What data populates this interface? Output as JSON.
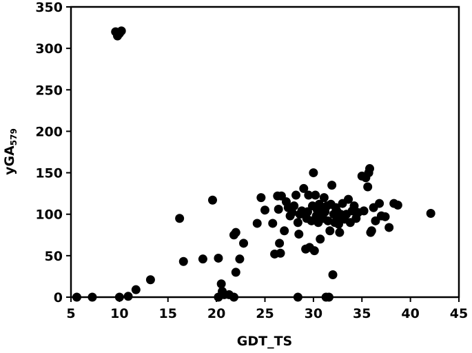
{
  "chart_data": {
    "type": "scatter",
    "title": "",
    "xlabel": "GDT_TS",
    "ylabel": {
      "main": "yGA",
      "subscript": "579"
    },
    "xlim": [
      5,
      45
    ],
    "ylim": [
      0,
      350
    ],
    "x_ticks": [
      5,
      10,
      15,
      20,
      25,
      30,
      35,
      40,
      45
    ],
    "y_ticks": [
      0,
      50,
      100,
      150,
      200,
      250,
      300,
      350
    ],
    "grid": false,
    "legend": "none",
    "marker_color": "#000000",
    "series": [
      {
        "points": [
          [
            9.6,
            320
          ],
          [
            9.8,
            315
          ],
          [
            10.2,
            321
          ],
          [
            10.0,
            318
          ],
          [
            5.6,
            0
          ],
          [
            7.2,
            0
          ],
          [
            10.0,
            0
          ],
          [
            10.9,
            1
          ],
          [
            11.7,
            9
          ],
          [
            13.2,
            21
          ],
          [
            16.2,
            95
          ],
          [
            16.6,
            43
          ],
          [
            18.6,
            46
          ],
          [
            19.6,
            117
          ],
          [
            20.2,
            47
          ],
          [
            20.2,
            0
          ],
          [
            20.5,
            16
          ],
          [
            20.6,
            7
          ],
          [
            20.8,
            3
          ],
          [
            21.3,
            3
          ],
          [
            21.8,
            0
          ],
          [
            21.8,
            75
          ],
          [
            22.0,
            78
          ],
          [
            22.0,
            30
          ],
          [
            22.4,
            46
          ],
          [
            22.8,
            65
          ],
          [
            24.2,
            89
          ],
          [
            24.6,
            120
          ],
          [
            25.0,
            105
          ],
          [
            25.8,
            89
          ],
          [
            26.0,
            52
          ],
          [
            26.3,
            122
          ],
          [
            26.4,
            106
          ],
          [
            26.5,
            65
          ],
          [
            26.6,
            53
          ],
          [
            26.7,
            122
          ],
          [
            27.0,
            80
          ],
          [
            27.2,
            115
          ],
          [
            27.4,
            108
          ],
          [
            27.6,
            98
          ],
          [
            27.8,
            102
          ],
          [
            28.0,
            110
          ],
          [
            28.2,
            123
          ],
          [
            28.4,
            90
          ],
          [
            28.4,
            0
          ],
          [
            28.5,
            76
          ],
          [
            28.6,
            100
          ],
          [
            28.8,
            104
          ],
          [
            29.0,
            131
          ],
          [
            29.2,
            58
          ],
          [
            29.3,
            95
          ],
          [
            29.4,
            103
          ],
          [
            29.5,
            123
          ],
          [
            29.6,
            60
          ],
          [
            29.8,
            92
          ],
          [
            29.9,
            110
          ],
          [
            30.0,
            150
          ],
          [
            30.1,
            56
          ],
          [
            30.2,
            123
          ],
          [
            30.3,
            98
          ],
          [
            30.4,
            105
          ],
          [
            30.5,
            90
          ],
          [
            30.6,
            112
          ],
          [
            30.7,
            70
          ],
          [
            30.8,
            100
          ],
          [
            30.9,
            108
          ],
          [
            31.0,
            95
          ],
          [
            31.1,
            120
          ],
          [
            31.2,
            103
          ],
          [
            31.3,
            0
          ],
          [
            31.4,
            110
          ],
          [
            31.5,
            92
          ],
          [
            31.6,
            0
          ],
          [
            31.7,
            80
          ],
          [
            31.8,
            112
          ],
          [
            31.9,
            135
          ],
          [
            32.0,
            27
          ],
          [
            32.1,
            100
          ],
          [
            32.2,
            90
          ],
          [
            32.3,
            108
          ],
          [
            32.4,
            104
          ],
          [
            32.5,
            95
          ],
          [
            32.6,
            88
          ],
          [
            32.7,
            78
          ],
          [
            32.8,
            100
          ],
          [
            33.0,
            113
          ],
          [
            33.2,
            94
          ],
          [
            33.4,
            100
          ],
          [
            33.6,
            118
          ],
          [
            33.8,
            90
          ],
          [
            34.0,
            104
          ],
          [
            34.2,
            110
          ],
          [
            34.4,
            95
          ],
          [
            34.6,
            102
          ],
          [
            35.0,
            146
          ],
          [
            35.2,
            104
          ],
          [
            35.4,
            144
          ],
          [
            35.6,
            133
          ],
          [
            35.7,
            150
          ],
          [
            35.8,
            155
          ],
          [
            35.9,
            78
          ],
          [
            36.0,
            80
          ],
          [
            36.2,
            108
          ],
          [
            36.4,
            92
          ],
          [
            36.8,
            113
          ],
          [
            37.0,
            98
          ],
          [
            37.4,
            97
          ],
          [
            37.8,
            84
          ],
          [
            38.3,
            113
          ],
          [
            38.7,
            111
          ],
          [
            42.1,
            101
          ]
        ]
      }
    ]
  }
}
